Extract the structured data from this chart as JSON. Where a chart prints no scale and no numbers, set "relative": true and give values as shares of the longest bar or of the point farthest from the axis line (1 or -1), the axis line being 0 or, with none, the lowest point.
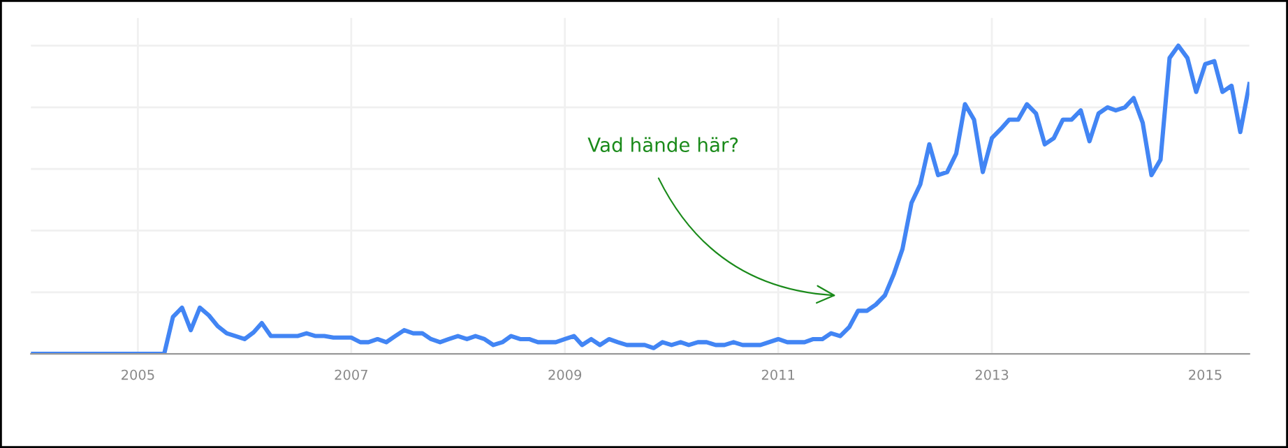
{
  "chart_data": {
    "type": "line",
    "relative": true,
    "grid": true,
    "x": [
      "2004-01",
      "2005-04",
      "2005-05",
      "2005-06",
      "2005-07",
      "2005-08",
      "2005-09",
      "2005-10",
      "2005-11",
      "2005-12",
      "2006-01",
      "2006-02",
      "2006-03",
      "2006-04",
      "2006-07",
      "2006-08",
      "2006-09",
      "2006-10",
      "2006-11",
      "2007-01",
      "2007-02",
      "2007-03",
      "2007-04",
      "2007-05",
      "2007-06",
      "2007-07",
      "2007-08",
      "2007-09",
      "2007-10",
      "2007-11",
      "2007-12",
      "2008-01",
      "2008-02",
      "2008-03",
      "2008-04",
      "2008-05",
      "2008-06",
      "2008-07",
      "2008-08",
      "2008-09",
      "2008-10",
      "2008-12",
      "2009-01",
      "2009-02",
      "2009-03",
      "2009-04",
      "2009-05",
      "2009-06",
      "2009-07",
      "2009-08",
      "2009-10",
      "2009-11",
      "2009-12",
      "2010-01",
      "2010-02",
      "2010-03",
      "2010-04",
      "2010-05",
      "2010-06",
      "2010-07",
      "2010-08",
      "2010-09",
      "2010-11",
      "2011-01",
      "2011-02",
      "2011-04",
      "2011-05",
      "2011-06",
      "2011-07",
      "2011-08",
      "2011-09",
      "2011-10",
      "2011-11",
      "2011-12",
      "2012-01",
      "2012-02",
      "2012-03",
      "2012-04",
      "2012-05",
      "2012-06",
      "2012-07",
      "2012-08",
      "2012-09",
      "2012-10",
      "2012-11",
      "2012-12",
      "2013-01",
      "2013-02",
      "2013-03",
      "2013-04",
      "2013-05",
      "2013-06",
      "2013-07",
      "2013-08",
      "2013-09",
      "2013-10",
      "2013-11",
      "2013-12",
      "2014-01",
      "2014-02",
      "2014-03",
      "2014-04",
      "2014-05",
      "2014-06",
      "2014-07",
      "2014-08",
      "2014-09",
      "2014-10",
      "2014-11",
      "2014-12",
      "2015-01",
      "2015-02",
      "2015-03",
      "2015-04",
      "2015-05",
      "2015-06"
    ],
    "series": [
      {
        "color": "#4285f4",
        "values": [
          0,
          0,
          0.12,
          0.15,
          0.077,
          0.15,
          0.125,
          0.09,
          0.067,
          0.058,
          0.048,
          0.07,
          0.1,
          0.058,
          0.058,
          0.067,
          0.058,
          0.058,
          0.053,
          0.053,
          0.038,
          0.038,
          0.048,
          0.038,
          0.058,
          0.077,
          0.067,
          0.067,
          0.048,
          0.038,
          0.048,
          0.058,
          0.048,
          0.058,
          0.048,
          0.029,
          0.038,
          0.058,
          0.048,
          0.048,
          0.038,
          0.038,
          0.048,
          0.058,
          0.029,
          0.048,
          0.029,
          0.048,
          0.038,
          0.029,
          0.029,
          0.019,
          0.038,
          0.029,
          0.038,
          0.029,
          0.038,
          0.038,
          0.029,
          0.029,
          0.038,
          0.029,
          0.029,
          0.048,
          0.038,
          0.038,
          0.048,
          0.048,
          0.067,
          0.058,
          0.087,
          0.14,
          0.14,
          0.16,
          0.19,
          0.26,
          0.34,
          0.49,
          0.55,
          0.68,
          0.58,
          0.59,
          0.65,
          0.81,
          0.76,
          0.59,
          0.7,
          0.73,
          0.76,
          0.76,
          0.81,
          0.78,
          0.68,
          0.7,
          0.76,
          0.76,
          0.79,
          0.69,
          0.78,
          0.8,
          0.79,
          0.8,
          0.83,
          0.75,
          0.58,
          0.63,
          0.96,
          1.0,
          0.96,
          0.85,
          0.94,
          0.95,
          0.85,
          0.87,
          0.72,
          0.875
        ]
      }
    ],
    "xlim": [
      "2004-01",
      "2015-06"
    ],
    "xticks": [
      "2005",
      "2007",
      "2009",
      "2011",
      "2013",
      "2015"
    ],
    "annotations": [
      "Vad hände här?"
    ]
  }
}
